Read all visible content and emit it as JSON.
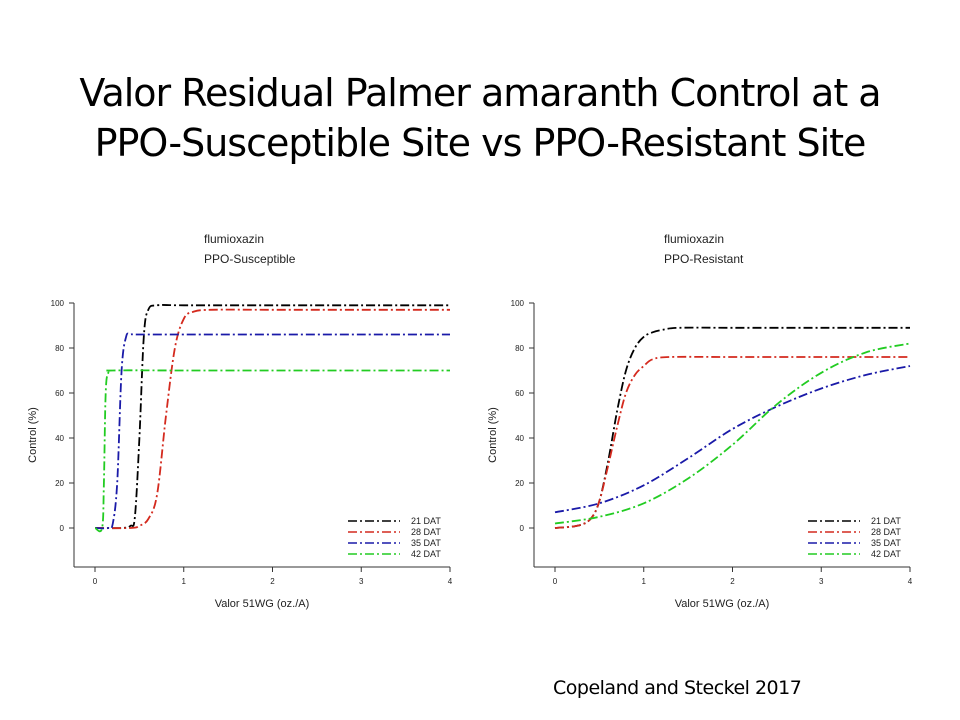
{
  "slide": {
    "title_line1": "Valor Residual Palmer amaranth Control at a",
    "title_line2": "PPO-Susceptible Site vs PPO-Resistant Site",
    "citation": "Copeland and Steckel 2017"
  },
  "chart_data": [
    {
      "type": "line",
      "subtitle_line1": "flumioxazin",
      "subtitle_line2": "PPO-Susceptible",
      "xlabel": "Valor  51WG (oz./A)",
      "ylabel": "Control (%)",
      "xlim": [
        0,
        4
      ],
      "ylim": [
        -10,
        100
      ],
      "xticks": [
        "0",
        "1",
        "2",
        "3",
        "4"
      ],
      "yticks": [
        "0",
        "20",
        "40",
        "60",
        "80",
        "100"
      ],
      "grid": false,
      "legend_position": "bottom-right",
      "series": [
        {
          "name": "21 DAT",
          "color": "#000000",
          "x": [
            0,
            0.3,
            0.4,
            0.45,
            0.5,
            0.55,
            0.6,
            0.7,
            1,
            2,
            3,
            4
          ],
          "y": [
            0,
            0,
            1,
            5,
            40,
            85,
            97,
            99,
            99,
            99,
            99,
            99
          ]
        },
        {
          "name": "28 DAT",
          "color": "#d42a1e",
          "x": [
            0,
            0.4,
            0.5,
            0.6,
            0.7,
            0.8,
            0.9,
            1.0,
            1.1,
            1.3,
            2,
            3,
            4
          ],
          "y": [
            0,
            0,
            1,
            4,
            15,
            50,
            80,
            93,
            96,
            97,
            97,
            97,
            97
          ]
        },
        {
          "name": "35 DAT",
          "color": "#1a1aa8",
          "x": [
            0,
            0.15,
            0.2,
            0.25,
            0.3,
            0.35,
            0.4,
            0.5,
            1,
            2,
            3,
            4
          ],
          "y": [
            0,
            0,
            2,
            20,
            70,
            85,
            86,
            86,
            86,
            86,
            86,
            86
          ]
        },
        {
          "name": "42 DAT",
          "color": "#22cc22",
          "x": [
            0,
            0.08,
            0.1,
            0.12,
            0.15,
            0.2,
            1,
            2,
            3,
            4
          ],
          "y": [
            0,
            0,
            20,
            60,
            69,
            70,
            70,
            70,
            70,
            70
          ]
        }
      ]
    },
    {
      "type": "line",
      "subtitle_line1": "flumioxazin",
      "subtitle_line2": "PPO-Resistant",
      "xlabel": "Valor  51WG (oz./A)",
      "ylabel": "Control (%)",
      "xlim": [
        0,
        4
      ],
      "ylim": [
        -10,
        100
      ],
      "xticks": [
        "0",
        "1",
        "2",
        "3",
        "4"
      ],
      "yticks": [
        "0",
        "20",
        "40",
        "60",
        "80",
        "100"
      ],
      "grid": false,
      "legend_position": "bottom-right",
      "series": [
        {
          "name": "21 DAT",
          "color": "#000000",
          "x": [
            0,
            0.25,
            0.4,
            0.5,
            0.6,
            0.7,
            0.8,
            0.9,
            1.0,
            1.1,
            1.2,
            1.4,
            2,
            3,
            4
          ],
          "y": [
            0,
            1,
            4,
            12,
            30,
            52,
            70,
            80,
            85,
            87,
            88,
            89,
            89,
            89,
            89
          ]
        },
        {
          "name": "28 DAT",
          "color": "#d42a1e",
          "x": [
            0,
            0.25,
            0.4,
            0.5,
            0.6,
            0.7,
            0.8,
            0.9,
            1.0,
            1.1,
            1.3,
            2,
            3,
            4
          ],
          "y": [
            0,
            1,
            4,
            12,
            28,
            45,
            60,
            68,
            72,
            75,
            76,
            76,
            76,
            76
          ]
        },
        {
          "name": "35 DAT",
          "color": "#1a1aa8",
          "x": [
            0,
            0.5,
            1.0,
            1.5,
            2.0,
            2.5,
            3.0,
            3.5,
            4.0
          ],
          "y": [
            7,
            11,
            19,
            31,
            44,
            54,
            62,
            68,
            72
          ]
        },
        {
          "name": "42 DAT",
          "color": "#22cc22",
          "x": [
            0,
            0.5,
            1.0,
            1.5,
            2.0,
            2.5,
            3.0,
            3.5,
            4.0
          ],
          "y": [
            2,
            5,
            11,
            22,
            37,
            55,
            69,
            78,
            82
          ]
        }
      ]
    }
  ]
}
